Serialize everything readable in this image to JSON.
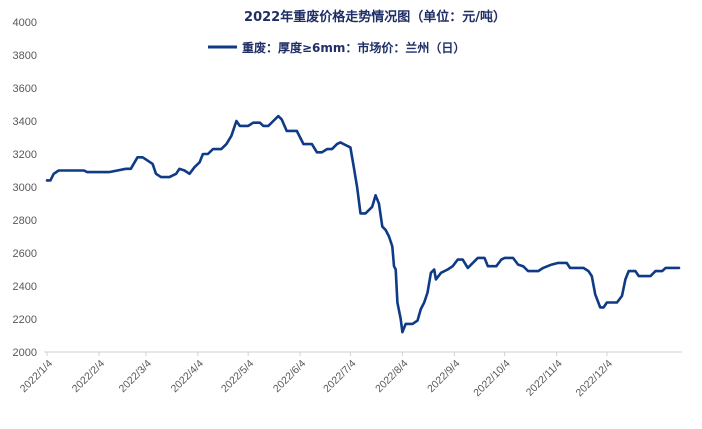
{
  "chart_data": {
    "type": "line",
    "title": "2022年重废价格走势情况图（单位：元/吨）",
    "xlabel": "",
    "ylabel": "",
    "ylim": [
      2000,
      4000
    ],
    "y_ticks": [
      2000,
      2200,
      2400,
      2600,
      2800,
      3000,
      3200,
      3400,
      3600,
      3800,
      4000
    ],
    "x_tick_labels": [
      "2022/1/4",
      "2022/2/4",
      "2022/3/4",
      "2022/4/4",
      "2022/5/4",
      "2022/6/4",
      "2022/7/4",
      "2022/8/4",
      "2022/9/4",
      "2022/10/4",
      "2022/11/4",
      "2022/12/4"
    ],
    "grid": false,
    "legend_position": "top-center",
    "color": "#0e3a86",
    "series": [
      {
        "name": "重废：厚度≥6mm：市场价：兰州（日）",
        "points": [
          [
            "2022/1/4",
            3040
          ],
          [
            "2022/1/6",
            3040
          ],
          [
            "2022/1/8",
            3080
          ],
          [
            "2022/1/11",
            3100
          ],
          [
            "2022/1/15",
            3100
          ],
          [
            "2022/1/20",
            3100
          ],
          [
            "2022/1/26",
            3100
          ],
          [
            "2022/1/28",
            3090
          ],
          [
            "2022/2/4",
            3090
          ],
          [
            "2022/2/10",
            3090
          ],
          [
            "2022/2/15",
            3100
          ],
          [
            "2022/2/20",
            3110
          ],
          [
            "2022/2/23",
            3110
          ],
          [
            "2022/2/27",
            3180
          ],
          [
            "2022/3/2",
            3180
          ],
          [
            "2022/3/5",
            3160
          ],
          [
            "2022/3/8",
            3140
          ],
          [
            "2022/3/10",
            3080
          ],
          [
            "2022/3/13",
            3060
          ],
          [
            "2022/3/18",
            3060
          ],
          [
            "2022/3/22",
            3080
          ],
          [
            "2022/3/24",
            3110
          ],
          [
            "2022/3/27",
            3100
          ],
          [
            "2022/3/30",
            3080
          ],
          [
            "2022/4/2",
            3120
          ],
          [
            "2022/4/5",
            3150
          ],
          [
            "2022/4/7",
            3200
          ],
          [
            "2022/4/10",
            3200
          ],
          [
            "2022/4/13",
            3230
          ],
          [
            "2022/4/18",
            3230
          ],
          [
            "2022/4/21",
            3260
          ],
          [
            "2022/4/24",
            3310
          ],
          [
            "2022/4/27",
            3400
          ],
          [
            "2022/4/29",
            3370
          ],
          [
            "2022/5/4",
            3370
          ],
          [
            "2022/5/7",
            3390
          ],
          [
            "2022/5/11",
            3390
          ],
          [
            "2022/5/13",
            3370
          ],
          [
            "2022/5/16",
            3370
          ],
          [
            "2022/5/19",
            3400
          ],
          [
            "2022/5/22",
            3430
          ],
          [
            "2022/5/24",
            3410
          ],
          [
            "2022/5/27",
            3340
          ],
          [
            "2022/6/2",
            3340
          ],
          [
            "2022/6/6",
            3260
          ],
          [
            "2022/6/11",
            3260
          ],
          [
            "2022/6/14",
            3210
          ],
          [
            "2022/6/17",
            3210
          ],
          [
            "2022/6/20",
            3230
          ],
          [
            "2022/6/23",
            3230
          ],
          [
            "2022/6/26",
            3260
          ],
          [
            "2022/6/28",
            3270
          ],
          [
            "2022/6/30",
            3260
          ],
          [
            "2022/7/4",
            3240
          ],
          [
            "2022/7/6",
            3120
          ],
          [
            "2022/7/8",
            3000
          ],
          [
            "2022/7/10",
            2840
          ],
          [
            "2022/7/13",
            2840
          ],
          [
            "2022/7/17",
            2880
          ],
          [
            "2022/7/19",
            2950
          ],
          [
            "2022/7/21",
            2900
          ],
          [
            "2022/7/23",
            2760
          ],
          [
            "2022/7/25",
            2740
          ],
          [
            "2022/7/27",
            2700
          ],
          [
            "2022/7/29",
            2640
          ],
          [
            "2022/7/30",
            2520
          ],
          [
            "2022/7/31",
            2500
          ],
          [
            "2022/8/1",
            2300
          ],
          [
            "2022/8/3",
            2200
          ],
          [
            "2022/8/4",
            2120
          ],
          [
            "2022/8/6",
            2170
          ],
          [
            "2022/8/10",
            2170
          ],
          [
            "2022/8/13",
            2190
          ],
          [
            "2022/8/15",
            2260
          ],
          [
            "2022/8/17",
            2300
          ],
          [
            "2022/8/19",
            2360
          ],
          [
            "2022/8/21",
            2480
          ],
          [
            "2022/8/23",
            2500
          ],
          [
            "2022/8/24",
            2440
          ],
          [
            "2022/8/27",
            2480
          ],
          [
            "2022/8/31",
            2500
          ],
          [
            "2022/9/3",
            2520
          ],
          [
            "2022/9/6",
            2560
          ],
          [
            "2022/9/9",
            2560
          ],
          [
            "2022/9/12",
            2510
          ],
          [
            "2022/9/15",
            2540
          ],
          [
            "2022/9/18",
            2570
          ],
          [
            "2022/9/22",
            2570
          ],
          [
            "2022/9/24",
            2520
          ],
          [
            "2022/9/29",
            2520
          ],
          [
            "2022/10/2",
            2560
          ],
          [
            "2022/10/4",
            2570
          ],
          [
            "2022/10/9",
            2570
          ],
          [
            "2022/10/12",
            2530
          ],
          [
            "2022/10/15",
            2520
          ],
          [
            "2022/10/18",
            2490
          ],
          [
            "2022/10/24",
            2490
          ],
          [
            "2022/10/27",
            2510
          ],
          [
            "2022/11/1",
            2530
          ],
          [
            "2022/11/5",
            2540
          ],
          [
            "2022/11/10",
            2540
          ],
          [
            "2022/11/12",
            2510
          ],
          [
            "2022/11/20",
            2510
          ],
          [
            "2022/11/23",
            2490
          ],
          [
            "2022/11/25",
            2460
          ],
          [
            "2022/11/27",
            2350
          ],
          [
            "2022/11/30",
            2270
          ],
          [
            "2022/12/2",
            2270
          ],
          [
            "2022/12/4",
            2300
          ],
          [
            "2022/12/10",
            2300
          ],
          [
            "2022/12/13",
            2340
          ],
          [
            "2022/12/15",
            2440
          ],
          [
            "2022/12/17",
            2490
          ],
          [
            "2022/12/21",
            2490
          ],
          [
            "2022/12/23",
            2460
          ],
          [
            "2022/12/30",
            2460
          ],
          [
            "2023/1/2",
            2490
          ],
          [
            "2023/1/6",
            2490
          ],
          [
            "2023/1/8",
            2510
          ],
          [
            "2023/1/16",
            2510
          ]
        ]
      }
    ]
  }
}
